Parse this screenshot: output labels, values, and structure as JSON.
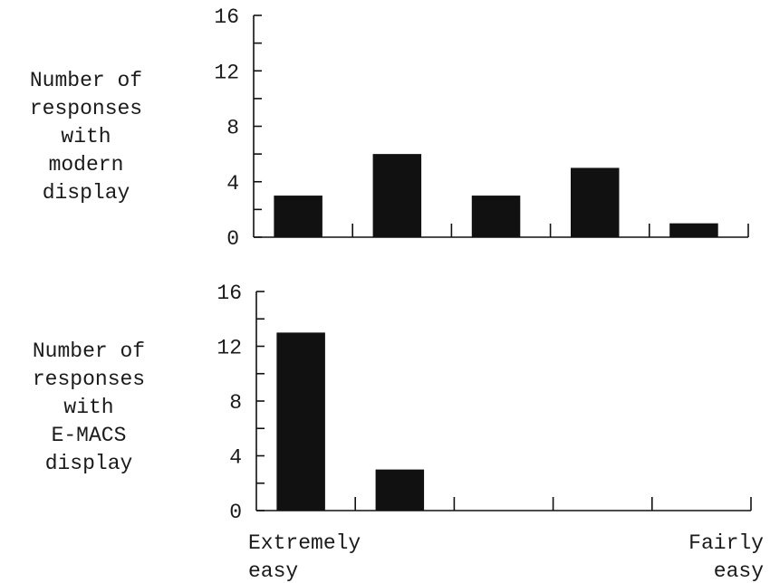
{
  "chart_data": [
    {
      "type": "bar",
      "ylabel": [
        "Number of",
        "responses",
        "with",
        "modern",
        "display"
      ],
      "ylim": [
        0,
        16
      ],
      "yticks": [
        0,
        4,
        8,
        12,
        16
      ],
      "categories": [
        "",
        "",
        "",
        "",
        ""
      ],
      "values": [
        3,
        6,
        3,
        5,
        1
      ]
    },
    {
      "type": "bar",
      "ylabel": [
        "Number of",
        "responses",
        "with",
        "E-MACS",
        "display"
      ],
      "ylim": [
        0,
        16
      ],
      "yticks": [
        0,
        4,
        8,
        12,
        16
      ],
      "categories": [
        "",
        "",
        "",
        "",
        ""
      ],
      "values": [
        13,
        3,
        0,
        0,
        0
      ]
    }
  ],
  "x_end_labels": {
    "left": [
      "Extremely",
      "easy"
    ],
    "right": [
      "Fairly",
      "easy"
    ]
  },
  "colors": {
    "bar": "#111111",
    "axis": "#111111",
    "background": "#ffffff"
  }
}
